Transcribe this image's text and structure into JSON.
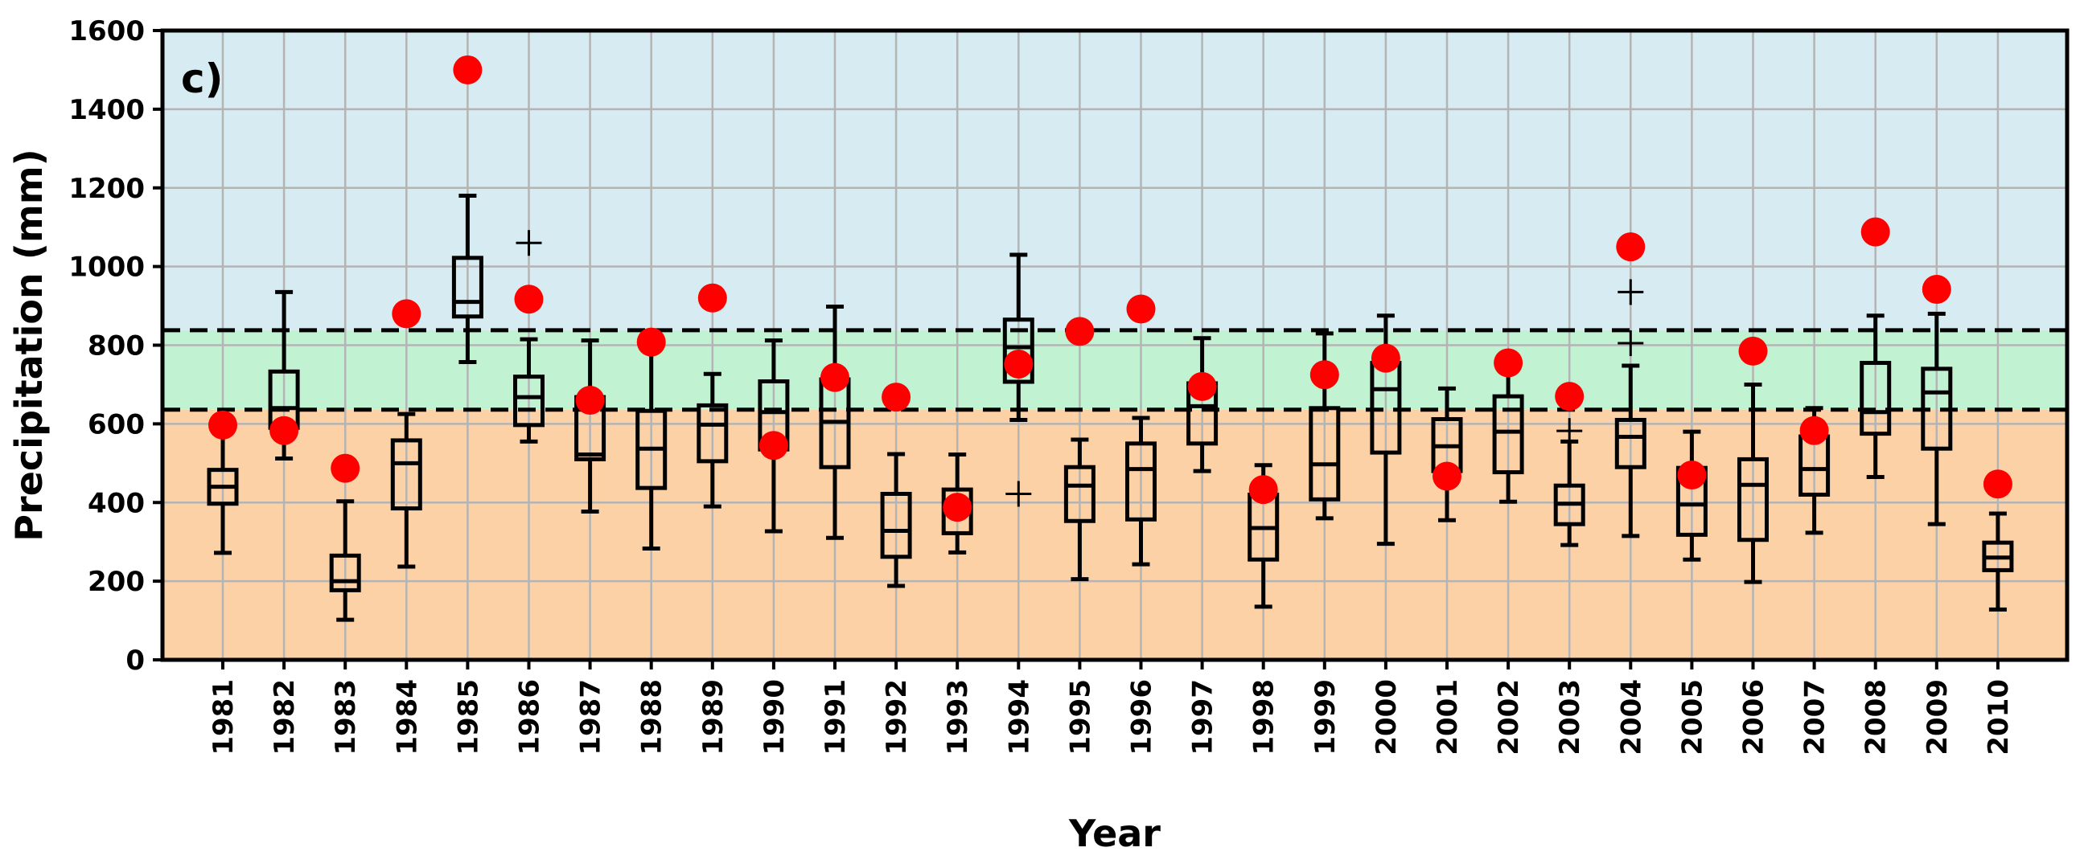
{
  "chart_data": {
    "type": "box",
    "panel_label": "c)",
    "xlabel": "Year",
    "ylabel": "Precipitation (mm)",
    "ylim": [
      0,
      1600
    ],
    "yticks": [
      0,
      200,
      400,
      600,
      800,
      1000,
      1200,
      1400,
      1600
    ],
    "grid": true,
    "categories": [
      "1981",
      "1982",
      "1983",
      "1984",
      "1985",
      "1986",
      "1987",
      "1988",
      "1989",
      "1990",
      "1991",
      "1992",
      "1993",
      "1994",
      "1995",
      "1996",
      "1997",
      "1998",
      "1999",
      "2000",
      "2001",
      "2002",
      "2003",
      "2004",
      "2005",
      "2006",
      "2007",
      "2008",
      "2009",
      "2010"
    ],
    "thresholds": [
      636,
      838
    ],
    "zones": [
      {
        "range": [
          0,
          636
        ],
        "color": "#fdd1a6"
      },
      {
        "range": [
          636,
          838
        ],
        "color": "#c1f3d3"
      },
      {
        "range": [
          838,
          1600
        ],
        "color": "#d6ebf2"
      }
    ],
    "boxes": [
      {
        "year": "1981",
        "whisker_low": 272,
        "q1": 397,
        "median": 440,
        "q3": 483,
        "whisker_high": 590,
        "outliers": []
      },
      {
        "year": "1982",
        "whisker_low": 512,
        "q1": 590,
        "median": 640,
        "q3": 733,
        "whisker_high": 935,
        "outliers": []
      },
      {
        "year": "1983",
        "whisker_low": 102,
        "q1": 177,
        "median": 200,
        "q3": 265,
        "whisker_high": 403,
        "outliers": []
      },
      {
        "year": "1984",
        "whisker_low": 237,
        "q1": 385,
        "median": 500,
        "q3": 558,
        "whisker_high": 625,
        "outliers": []
      },
      {
        "year": "1985",
        "whisker_low": 757,
        "q1": 873,
        "median": 910,
        "q3": 1022,
        "whisker_high": 1180,
        "outliers": []
      },
      {
        "year": "1986",
        "whisker_low": 555,
        "q1": 597,
        "median": 668,
        "q3": 720,
        "whisker_high": 815,
        "outliers": [
          1060
        ]
      },
      {
        "year": "1987",
        "whisker_low": 377,
        "q1": 510,
        "median": 522,
        "q3": 668,
        "whisker_high": 812,
        "outliers": []
      },
      {
        "year": "1988",
        "whisker_low": 283,
        "q1": 437,
        "median": 537,
        "q3": 633,
        "whisker_high": 818,
        "outliers": []
      },
      {
        "year": "1989",
        "whisker_low": 390,
        "q1": 505,
        "median": 598,
        "q3": 647,
        "whisker_high": 727,
        "outliers": []
      },
      {
        "year": "1990",
        "whisker_low": 327,
        "q1": 535,
        "median": 630,
        "q3": 708,
        "whisker_high": 812,
        "outliers": []
      },
      {
        "year": "1991",
        "whisker_low": 310,
        "q1": 490,
        "median": 605,
        "q3": 713,
        "whisker_high": 898,
        "outliers": []
      },
      {
        "year": "1992",
        "whisker_low": 188,
        "q1": 262,
        "median": 328,
        "q3": 422,
        "whisker_high": 523,
        "outliers": []
      },
      {
        "year": "1993",
        "whisker_low": 273,
        "q1": 322,
        "median": 382,
        "q3": 433,
        "whisker_high": 522,
        "outliers": []
      },
      {
        "year": "1994",
        "whisker_low": 610,
        "q1": 707,
        "median": 795,
        "q3": 865,
        "whisker_high": 1030,
        "outliers": [
          422
        ]
      },
      {
        "year": "1995",
        "whisker_low": 205,
        "q1": 353,
        "median": 443,
        "q3": 490,
        "whisker_high": 560,
        "outliers": []
      },
      {
        "year": "1996",
        "whisker_low": 243,
        "q1": 357,
        "median": 485,
        "q3": 550,
        "whisker_high": 615,
        "outliers": []
      },
      {
        "year": "1997",
        "whisker_low": 480,
        "q1": 550,
        "median": 645,
        "q3": 703,
        "whisker_high": 818,
        "outliers": []
      },
      {
        "year": "1998",
        "whisker_low": 135,
        "q1": 255,
        "median": 335,
        "q3": 420,
        "whisker_high": 495,
        "outliers": []
      },
      {
        "year": "1999",
        "whisker_low": 360,
        "q1": 408,
        "median": 497,
        "q3": 640,
        "whisker_high": 830,
        "outliers": []
      },
      {
        "year": "2000",
        "whisker_low": 295,
        "q1": 527,
        "median": 688,
        "q3": 755,
        "whisker_high": 875,
        "outliers": []
      },
      {
        "year": "2001",
        "whisker_low": 355,
        "q1": 480,
        "median": 543,
        "q3": 612,
        "whisker_high": 690,
        "outliers": []
      },
      {
        "year": "2002",
        "whisker_low": 402,
        "q1": 477,
        "median": 580,
        "q3": 670,
        "whisker_high": 748,
        "outliers": []
      },
      {
        "year": "2003",
        "whisker_low": 292,
        "q1": 345,
        "median": 397,
        "q3": 443,
        "whisker_high": 555,
        "outliers": [
          582
        ]
      },
      {
        "year": "2004",
        "whisker_low": 315,
        "q1": 490,
        "median": 567,
        "q3": 610,
        "whisker_high": 748,
        "outliers": [
          805,
          935
        ]
      },
      {
        "year": "2005",
        "whisker_low": 255,
        "q1": 318,
        "median": 395,
        "q3": 488,
        "whisker_high": 580,
        "outliers": []
      },
      {
        "year": "2006",
        "whisker_low": 198,
        "q1": 305,
        "median": 445,
        "q3": 510,
        "whisker_high": 700,
        "outliers": []
      },
      {
        "year": "2007",
        "whisker_low": 323,
        "q1": 420,
        "median": 485,
        "q3": 568,
        "whisker_high": 640,
        "outliers": []
      },
      {
        "year": "2008",
        "whisker_low": 465,
        "q1": 575,
        "median": 630,
        "q3": 755,
        "whisker_high": 875,
        "outliers": []
      },
      {
        "year": "2009",
        "whisker_low": 345,
        "q1": 537,
        "median": 680,
        "q3": 740,
        "whisker_high": 880,
        "outliers": []
      },
      {
        "year": "2010",
        "whisker_low": 128,
        "q1": 228,
        "median": 260,
        "q3": 298,
        "whisker_high": 372,
        "outliers": []
      }
    ],
    "observed_points": {
      "color": "#ff0000",
      "values": [
        597,
        583,
        487,
        880,
        1500,
        917,
        660,
        808,
        920,
        545,
        718,
        668,
        388,
        752,
        835,
        892,
        695,
        433,
        725,
        767,
        467,
        755,
        670,
        1050,
        470,
        785,
        583,
        1088,
        942,
        447
      ]
    }
  }
}
